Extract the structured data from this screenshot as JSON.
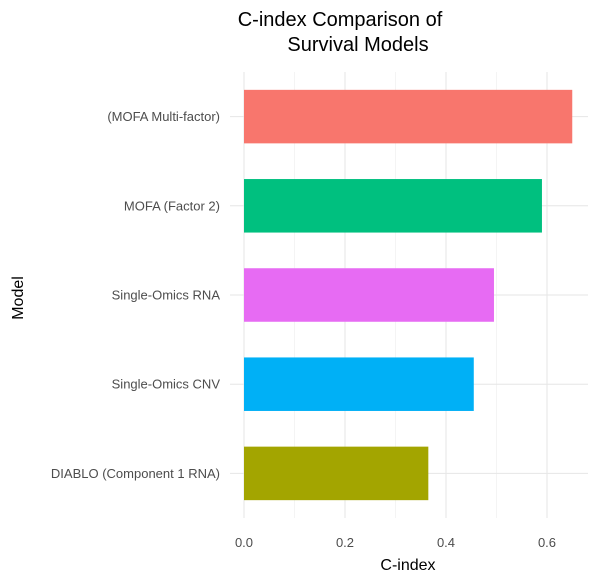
{
  "chart_data": {
    "type": "bar",
    "orientation": "horizontal",
    "title_lines": [
      "C-index Comparison of",
      "Survival Models"
    ],
    "xlabel": "C-index",
    "ylabel": "Model",
    "xlim": [
      0,
      0.66
    ],
    "x_ticks": [
      0.0,
      0.2,
      0.4,
      0.6
    ],
    "x_tick_labels": [
      "0.0",
      "0.2",
      "0.4",
      "0.6"
    ],
    "grid": true,
    "legend": "none",
    "categories": [
      "(MOFA Multi-factor)",
      "MOFA (Factor 2)",
      "Single-Omics RNA",
      "Single-Omics CNV",
      "DIABLO (Component 1 RNA)"
    ],
    "values": [
      0.65,
      0.59,
      0.495,
      0.455,
      0.365
    ],
    "colors": [
      "#F8766D",
      "#00C07F",
      "#E76BF3",
      "#00B0F6",
      "#A3A500"
    ]
  }
}
